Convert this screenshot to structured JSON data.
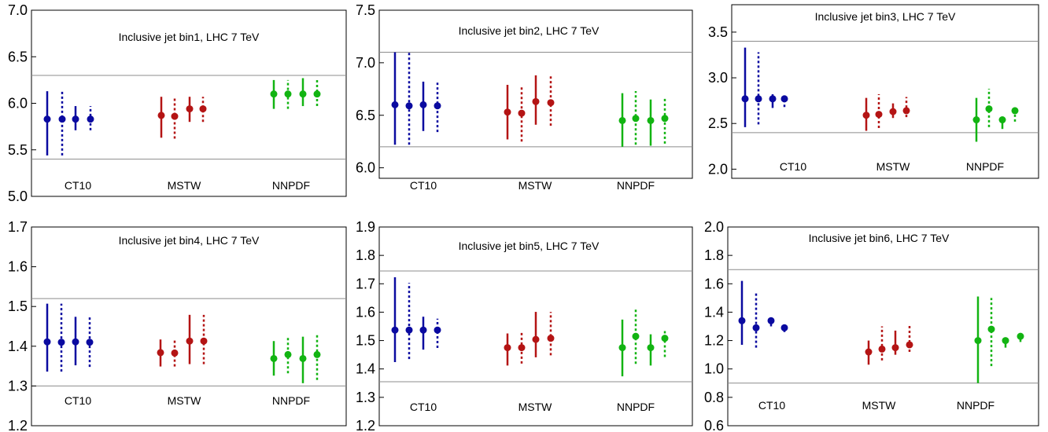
{
  "chart_data": [
    {
      "type": "scatter",
      "title": "Inclusive jet bin1, LHC 7 TeV",
      "ylim": [
        5.0,
        7.0
      ],
      "yticks": [
        "5.0",
        "5.5",
        "6.0",
        "6.5",
        "7.0"
      ],
      "band": [
        5.4,
        6.3
      ],
      "group_labels": [
        "CT10",
        "MSTW",
        "NNPDF"
      ],
      "series": [
        {
          "color": "#0a0aa0",
          "points": [
            {
              "y": 5.83,
              "lo": 5.44,
              "hi": 6.13,
              "dashed": false
            },
            {
              "y": 5.83,
              "lo": 5.44,
              "hi": 6.13,
              "dashed": true
            },
            {
              "y": 5.83,
              "lo": 5.71,
              "hi": 5.97,
              "dashed": false
            },
            {
              "y": 5.83,
              "lo": 5.71,
              "hi": 5.97,
              "dashed": true
            }
          ]
        },
        {
          "color": "#b41414",
          "points": [
            {
              "y": 5.87,
              "lo": 5.63,
              "hi": 6.07,
              "dashed": false
            },
            {
              "y": 5.86,
              "lo": 5.62,
              "hi": 6.06,
              "dashed": true
            },
            {
              "y": 5.94,
              "lo": 5.8,
              "hi": 6.07,
              "dashed": false
            },
            {
              "y": 5.94,
              "lo": 5.8,
              "hi": 6.07,
              "dashed": true
            }
          ]
        },
        {
          "color": "#12b412",
          "points": [
            {
              "y": 6.1,
              "lo": 5.94,
              "hi": 6.25,
              "dashed": false
            },
            {
              "y": 6.1,
              "lo": 5.94,
              "hi": 6.25,
              "dashed": true
            },
            {
              "y": 6.1,
              "lo": 5.97,
              "hi": 6.27,
              "dashed": false
            },
            {
              "y": 6.1,
              "lo": 5.97,
              "hi": 6.27,
              "dashed": true
            }
          ]
        }
      ]
    },
    {
      "type": "scatter",
      "title": "Inclusive jet bin2, LHC 7 TeV",
      "ylim": [
        5.9,
        7.5
      ],
      "yticks": [
        "6.0",
        "6.5",
        "7.0",
        "7.5"
      ],
      "band": [
        6.2,
        7.1
      ],
      "group_labels": [
        "CT10",
        "MSTW",
        "NNPDF"
      ],
      "series": [
        {
          "color": "#0a0aa0",
          "points": [
            {
              "y": 6.6,
              "lo": 6.22,
              "hi": 7.1,
              "dashed": false
            },
            {
              "y": 6.59,
              "lo": 6.22,
              "hi": 7.1,
              "dashed": true
            },
            {
              "y": 6.6,
              "lo": 6.35,
              "hi": 6.82,
              "dashed": false
            },
            {
              "y": 6.59,
              "lo": 6.34,
              "hi": 6.81,
              "dashed": true
            }
          ]
        },
        {
          "color": "#b41414",
          "points": [
            {
              "y": 6.53,
              "lo": 6.27,
              "hi": 6.79,
              "dashed": false
            },
            {
              "y": 6.52,
              "lo": 6.25,
              "hi": 6.78,
              "dashed": true
            },
            {
              "y": 6.63,
              "lo": 6.41,
              "hi": 6.88,
              "dashed": false
            },
            {
              "y": 6.62,
              "lo": 6.4,
              "hi": 6.87,
              "dashed": true
            }
          ]
        },
        {
          "color": "#12b412",
          "points": [
            {
              "y": 6.45,
              "lo": 6.2,
              "hi": 6.71,
              "dashed": false
            },
            {
              "y": 6.47,
              "lo": 6.22,
              "hi": 6.73,
              "dashed": true
            },
            {
              "y": 6.45,
              "lo": 6.21,
              "hi": 6.65,
              "dashed": false
            },
            {
              "y": 6.47,
              "lo": 6.23,
              "hi": 6.67,
              "dashed": true
            }
          ]
        }
      ]
    },
    {
      "type": "scatter",
      "title": "Inclusive jet bin3, LHC 7 TeV",
      "ylim": [
        1.9,
        3.8
      ],
      "yticks": [
        "2.0",
        "2.5",
        "3.0",
        "3.5"
      ],
      "band": [
        2.4,
        3.4
      ],
      "group_labels": [
        "CT10",
        "MSTW",
        "NNPDF"
      ],
      "series": [
        {
          "color": "#0a0aa0",
          "points": [
            {
              "y": 2.77,
              "lo": 2.46,
              "hi": 3.33,
              "dashed": false
            },
            {
              "y": 2.77,
              "lo": 2.49,
              "hi": 3.28,
              "dashed": true
            },
            {
              "y": 2.77,
              "lo": 2.67,
              "hi": 2.82,
              "dashed": false
            },
            {
              "y": 2.77,
              "lo": 2.68,
              "hi": 2.8,
              "dashed": true
            }
          ]
        },
        {
          "color": "#b41414",
          "points": [
            {
              "y": 2.59,
              "lo": 2.42,
              "hi": 2.78,
              "dashed": false
            },
            {
              "y": 2.6,
              "lo": 2.45,
              "hi": 2.82,
              "dashed": true
            },
            {
              "y": 2.63,
              "lo": 2.56,
              "hi": 2.72,
              "dashed": false
            },
            {
              "y": 2.64,
              "lo": 2.57,
              "hi": 2.79,
              "dashed": true
            }
          ]
        },
        {
          "color": "#12b412",
          "points": [
            {
              "y": 2.54,
              "lo": 2.3,
              "hi": 2.78,
              "dashed": false
            },
            {
              "y": 2.66,
              "lo": 2.46,
              "hi": 2.88,
              "dashed": true
            },
            {
              "y": 2.54,
              "lo": 2.44,
              "hi": 2.56,
              "dashed": false
            },
            {
              "y": 2.64,
              "lo": 2.52,
              "hi": 2.66,
              "dashed": true
            }
          ]
        }
      ]
    },
    {
      "type": "scatter",
      "title": "Inclusive jet bin4, LHC 7 TeV",
      "ylim": [
        1.2,
        1.7
      ],
      "yticks": [
        "1.2",
        "1.3",
        "1.4",
        "1.5",
        "1.6",
        "1.7"
      ],
      "band": [
        1.3,
        1.52
      ],
      "group_labels": [
        "CT10",
        "MSTW",
        "NNPDF"
      ],
      "series": [
        {
          "color": "#0a0aa0",
          "points": [
            {
              "y": 1.411,
              "lo": 1.336,
              "hi": 1.507,
              "dashed": false
            },
            {
              "y": 1.41,
              "lo": 1.336,
              "hi": 1.507,
              "dashed": true
            },
            {
              "y": 1.411,
              "lo": 1.352,
              "hi": 1.474,
              "dashed": false
            },
            {
              "y": 1.41,
              "lo": 1.348,
              "hi": 1.473,
              "dashed": true
            }
          ]
        },
        {
          "color": "#b41414",
          "points": [
            {
              "y": 1.384,
              "lo": 1.349,
              "hi": 1.417,
              "dashed": false
            },
            {
              "y": 1.383,
              "lo": 1.349,
              "hi": 1.417,
              "dashed": true
            },
            {
              "y": 1.413,
              "lo": 1.355,
              "hi": 1.479,
              "dashed": false
            },
            {
              "y": 1.413,
              "lo": 1.355,
              "hi": 1.479,
              "dashed": true
            }
          ]
        },
        {
          "color": "#12b412",
          "points": [
            {
              "y": 1.369,
              "lo": 1.326,
              "hi": 1.413,
              "dashed": false
            },
            {
              "y": 1.379,
              "lo": 1.332,
              "hi": 1.423,
              "dashed": true
            },
            {
              "y": 1.369,
              "lo": 1.307,
              "hi": 1.424,
              "dashed": false
            },
            {
              "y": 1.379,
              "lo": 1.315,
              "hi": 1.43,
              "dashed": true
            }
          ]
        }
      ]
    },
    {
      "type": "scatter",
      "title": "Inclusive jet bin5, LHC 7 TeV",
      "ylim": [
        1.2,
        1.9
      ],
      "yticks": [
        "1.2",
        "1.3",
        "1.4",
        "1.5",
        "1.6",
        "1.7",
        "1.8",
        "1.9"
      ],
      "band": [
        1.355,
        1.745
      ],
      "group_labels": [
        "CT10",
        "MSTW",
        "NNPDF"
      ],
      "series": [
        {
          "color": "#0a0aa0",
          "points": [
            {
              "y": 1.537,
              "lo": 1.424,
              "hi": 1.723,
              "dashed": false
            },
            {
              "y": 1.537,
              "lo": 1.435,
              "hi": 1.703,
              "dashed": true
            },
            {
              "y": 1.537,
              "lo": 1.468,
              "hi": 1.584,
              "dashed": false
            },
            {
              "y": 1.537,
              "lo": 1.474,
              "hi": 1.577,
              "dashed": true
            }
          ]
        },
        {
          "color": "#b41414",
          "points": [
            {
              "y": 1.475,
              "lo": 1.412,
              "hi": 1.525,
              "dashed": false
            },
            {
              "y": 1.475,
              "lo": 1.419,
              "hi": 1.535,
              "dashed": true
            },
            {
              "y": 1.504,
              "lo": 1.441,
              "hi": 1.601,
              "dashed": false
            },
            {
              "y": 1.508,
              "lo": 1.448,
              "hi": 1.601,
              "dashed": true
            }
          ]
        },
        {
          "color": "#12b412",
          "points": [
            {
              "y": 1.475,
              "lo": 1.374,
              "hi": 1.574,
              "dashed": false
            },
            {
              "y": 1.515,
              "lo": 1.418,
              "hi": 1.61,
              "dashed": true
            },
            {
              "y": 1.475,
              "lo": 1.412,
              "hi": 1.522,
              "dashed": false
            },
            {
              "y": 1.508,
              "lo": 1.442,
              "hi": 1.541,
              "dashed": true
            }
          ]
        }
      ]
    },
    {
      "type": "scatter",
      "title": "Inclusive jet bin6, LHC 7 TeV",
      "ylim": [
        0.6,
        2.0
      ],
      "yticks": [
        "0.6",
        "0.8",
        "1.0",
        "1.2",
        "1.4",
        "1.6",
        "1.8",
        "2.0"
      ],
      "band": [
        0.9,
        1.7
      ],
      "group_labels": [
        "CT10",
        "MSTW",
        "NNPDF"
      ],
      "series": [
        {
          "color": "#0a0aa0",
          "points": [
            {
              "y": 1.34,
              "lo": 1.17,
              "hi": 1.62,
              "dashed": false
            },
            {
              "y": 1.29,
              "lo": 1.15,
              "hi": 1.54,
              "dashed": true
            },
            {
              "y": 1.34,
              "lo": 1.3,
              "hi": 1.36,
              "dashed": false
            },
            {
              "y": 1.29,
              "lo": 1.26,
              "hi": 1.31,
              "dashed": true
            }
          ]
        },
        {
          "color": "#b41414",
          "points": [
            {
              "y": 1.12,
              "lo": 1.03,
              "hi": 1.2,
              "dashed": false
            },
            {
              "y": 1.14,
              "lo": 1.06,
              "hi": 1.3,
              "dashed": true
            },
            {
              "y": 1.15,
              "lo": 1.1,
              "hi": 1.27,
              "dashed": false
            },
            {
              "y": 1.17,
              "lo": 1.12,
              "hi": 1.31,
              "dashed": true
            }
          ]
        },
        {
          "color": "#12b412",
          "points": [
            {
              "y": 1.2,
              "lo": 0.9,
              "hi": 1.51,
              "dashed": false
            },
            {
              "y": 1.28,
              "lo": 1.02,
              "hi": 1.5,
              "dashed": true
            },
            {
              "y": 1.2,
              "lo": 1.15,
              "hi": 1.22,
              "dashed": false
            },
            {
              "y": 1.23,
              "lo": 1.19,
              "hi": 1.25,
              "dashed": true
            }
          ]
        }
      ]
    }
  ]
}
